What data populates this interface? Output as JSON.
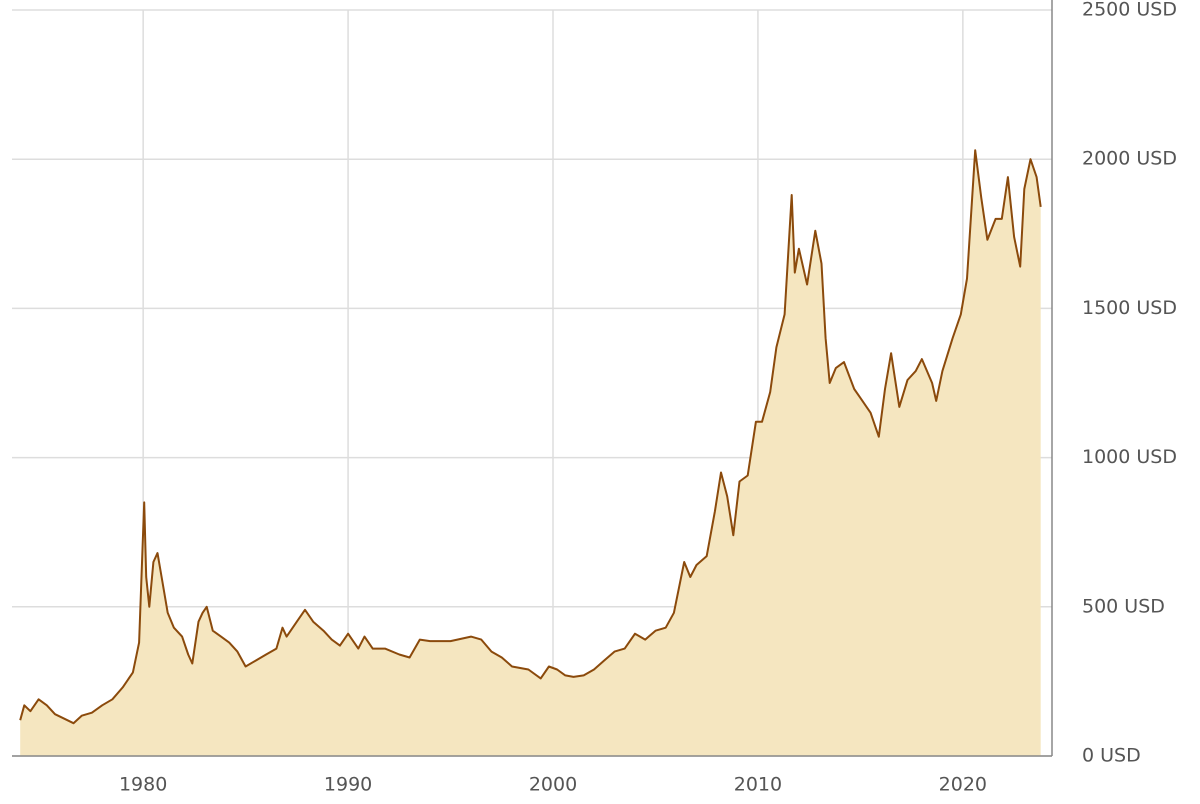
{
  "chart_data": {
    "type": "area",
    "x": [
      1974.0,
      1974.2,
      1974.5,
      1974.9,
      1975.3,
      1975.7,
      1976.0,
      1976.6,
      1977.0,
      1977.5,
      1978.0,
      1978.5,
      1979.0,
      1979.5,
      1979.8,
      1980.05,
      1980.15,
      1980.3,
      1980.5,
      1980.7,
      1980.9,
      1981.2,
      1981.5,
      1981.9,
      1982.2,
      1982.4,
      1982.7,
      1982.9,
      1983.1,
      1983.4,
      1983.8,
      1984.2,
      1984.6,
      1985.0,
      1985.5,
      1986.0,
      1986.5,
      1986.8,
      1987.0,
      1987.5,
      1987.9,
      1988.3,
      1988.8,
      1989.2,
      1989.6,
      1990.0,
      1990.5,
      1990.8,
      1991.2,
      1991.8,
      1992.5,
      1993.0,
      1993.5,
      1994.0,
      1995.0,
      1996.0,
      1996.5,
      1997.0,
      1997.5,
      1998.0,
      1998.8,
      1999.4,
      1999.8,
      2000.2,
      2000.6,
      2001.0,
      2001.5,
      2002.0,
      2002.5,
      2003.0,
      2003.5,
      2004.0,
      2004.5,
      2005.0,
      2005.5,
      2005.9,
      2006.4,
      2006.7,
      2007.0,
      2007.5,
      2007.9,
      2008.2,
      2008.5,
      2008.8,
      2009.1,
      2009.5,
      2009.9,
      2010.2,
      2010.6,
      2010.9,
      2011.3,
      2011.65,
      2011.8,
      2012.0,
      2012.4,
      2012.8,
      2013.1,
      2013.3,
      2013.5,
      2013.8,
      2014.2,
      2014.7,
      2015.0,
      2015.5,
      2015.9,
      2016.2,
      2016.5,
      2016.9,
      2017.3,
      2017.7,
      2018.0,
      2018.5,
      2018.7,
      2019.0,
      2019.5,
      2019.9,
      2020.2,
      2020.6,
      2020.9,
      2021.2,
      2021.6,
      2021.9,
      2022.2,
      2022.5,
      2022.8,
      2023.0,
      2023.3,
      2023.6,
      2023.8
    ],
    "values": [
      120,
      170,
      150,
      190,
      170,
      140,
      130,
      110,
      135,
      145,
      170,
      190,
      230,
      280,
      380,
      850,
      600,
      500,
      650,
      680,
      600,
      480,
      430,
      400,
      340,
      310,
      450,
      480,
      500,
      420,
      400,
      380,
      350,
      300,
      320,
      340,
      360,
      430,
      400,
      450,
      490,
      450,
      420,
      390,
      370,
      410,
      360,
      400,
      360,
      360,
      340,
      330,
      390,
      385,
      385,
      400,
      390,
      350,
      330,
      300,
      290,
      260,
      300,
      290,
      270,
      265,
      270,
      290,
      320,
      350,
      360,
      410,
      390,
      420,
      430,
      480,
      650,
      600,
      640,
      670,
      820,
      950,
      870,
      740,
      920,
      940,
      1120,
      1120,
      1220,
      1370,
      1480,
      1880,
      1620,
      1700,
      1580,
      1760,
      1650,
      1400,
      1250,
      1300,
      1320,
      1230,
      1200,
      1150,
      1070,
      1230,
      1350,
      1170,
      1260,
      1290,
      1330,
      1250,
      1190,
      1290,
      1400,
      1480,
      1600,
      2030,
      1870,
      1730,
      1800,
      1800,
      1940,
      1740,
      1640,
      1900,
      2000,
      1940,
      1840
    ],
    "color": "#8b4a0c",
    "area_color": "#f5e6c0",
    "xlim": [
      1973.6,
      2024.35
    ],
    "xticks": [
      1980,
      1990,
      2000,
      2010,
      2020
    ],
    "ylim": [
      0,
      2500
    ],
    "yticks": [
      {
        "value": 0,
        "label": "0 USD"
      },
      {
        "value": 500,
        "label": "500 USD"
      },
      {
        "value": 1000,
        "label": "1000 USD"
      },
      {
        "value": 1500,
        "label": "1500 USD"
      },
      {
        "value": 2000,
        "label": "2000 USD"
      },
      {
        "value": 2500,
        "label": "2500 USD"
      }
    ],
    "grid": true
  }
}
